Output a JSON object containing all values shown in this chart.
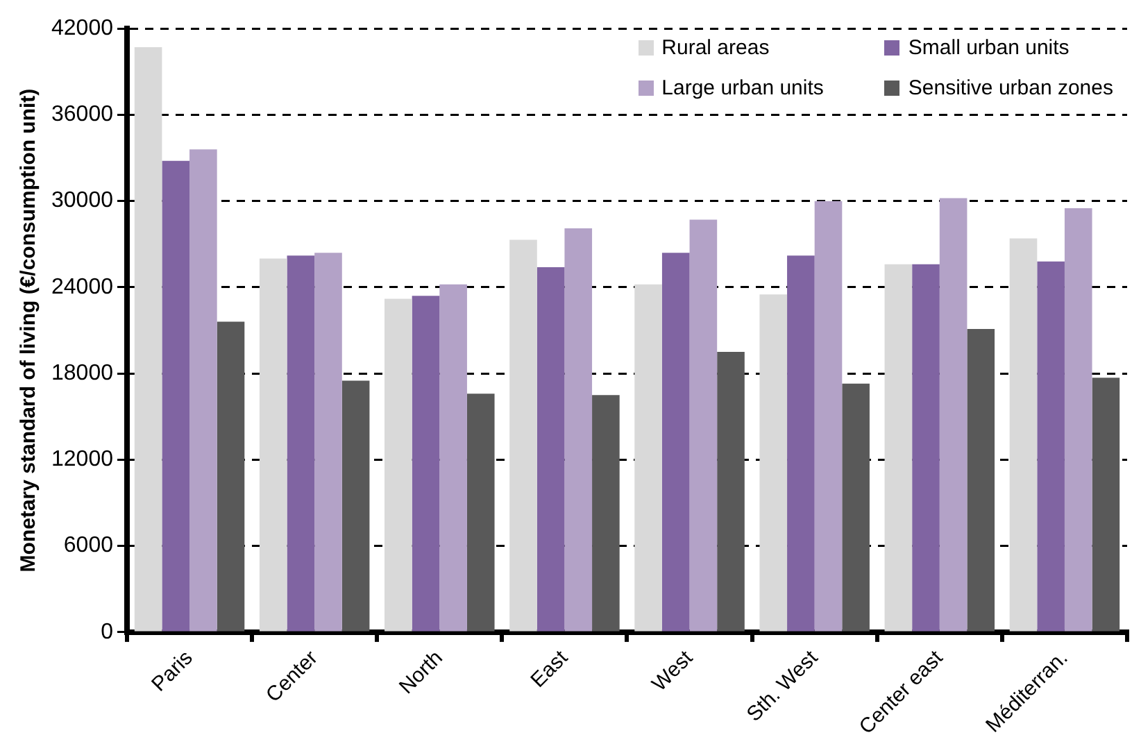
{
  "chart_data": {
    "type": "bar",
    "ylabel": "Monetary standard of living (€/consumption unit)",
    "categories": [
      "Paris",
      "Center",
      "North",
      "East",
      "West",
      "Sth. West",
      "Center east",
      "Méditerran."
    ],
    "series": [
      {
        "name": "Rural areas",
        "color": "#d9d9d9",
        "values": [
          40700,
          26000,
          23200,
          27300,
          24200,
          23500,
          25600,
          27400
        ]
      },
      {
        "name": "Small urban units",
        "color": "#8064a2",
        "values": [
          32800,
          26200,
          23400,
          25400,
          26400,
          26200,
          25600,
          25800
        ]
      },
      {
        "name": "Large urban units",
        "color": "#b3a2c7",
        "values": [
          33600,
          26400,
          24200,
          28100,
          28700,
          30000,
          30200,
          29500
        ]
      },
      {
        "name": "Sensitive urban zones",
        "color": "#595959",
        "values": [
          21600,
          17500,
          16600,
          16500,
          19500,
          17300,
          21100,
          17700
        ]
      }
    ],
    "ylim": [
      0,
      42000
    ],
    "yticks": [
      0,
      6000,
      12000,
      18000,
      24000,
      30000,
      36000,
      42000
    ],
    "grid": "y",
    "legend": "top right"
  }
}
